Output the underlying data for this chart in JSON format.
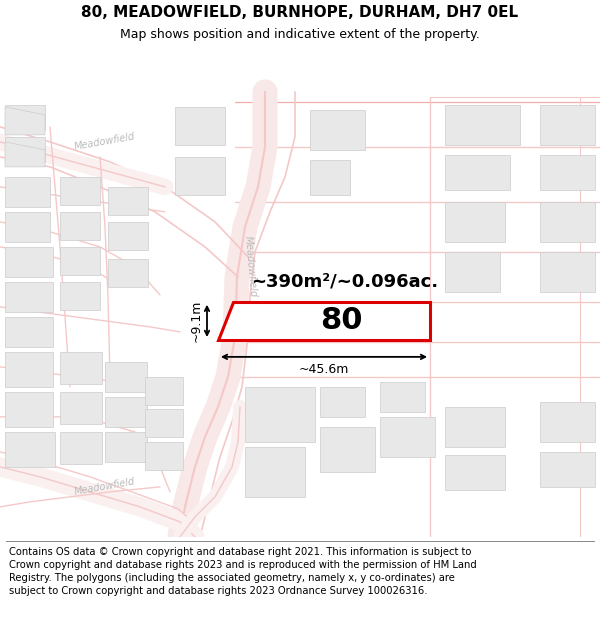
{
  "title": "80, MEADOWFIELD, BURNHOPE, DURHAM, DH7 0EL",
  "subtitle": "Map shows position and indicative extent of the property.",
  "footer": "Contains OS data © Crown copyright and database right 2021. This information is subject to Crown copyright and database rights 2023 and is reproduced with the permission of HM Land Registry. The polygons (including the associated geometry, namely x, y co-ordinates) are subject to Crown copyright and database rights 2023 Ordnance Survey 100026316.",
  "area_label": "~390m²/~0.096ac.",
  "width_label": "~45.6m",
  "height_label": "~9.1m",
  "plot_number": "80",
  "map_bg": "#ffffff",
  "road_color": "#f5c8c8",
  "road_outline": "#f0b0b0",
  "building_fill": "#e8e8e8",
  "building_edge": "#cccccc",
  "highlight_color": "#dd0000",
  "dim_color": "#888888",
  "title_fontsize": 11,
  "subtitle_fontsize": 9,
  "footer_fontsize": 7.2,
  "label_fontsize": 13,
  "plot_label_fontsize": 22,
  "dim_label_fontsize": 9
}
